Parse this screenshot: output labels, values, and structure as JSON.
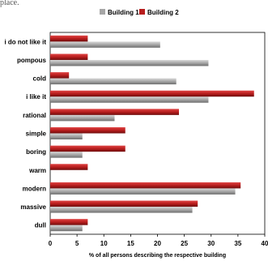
{
  "page": {
    "top_text": "place."
  },
  "chart_data": {
    "type": "bar",
    "orientation": "horizontal",
    "categories": [
      "i do not like it",
      "pompous",
      "cold",
      "i like it",
      "rational",
      "simple",
      "boring",
      "warm",
      "modern",
      "massive",
      "dull"
    ],
    "series": [
      {
        "name": "Building 1",
        "values": [
          20.5,
          29.5,
          23.5,
          29.5,
          12,
          6,
          6,
          0,
          34.5,
          26.5,
          6
        ]
      },
      {
        "name": "Building 2",
        "values": [
          7,
          7,
          3.5,
          38,
          24,
          14,
          14,
          7,
          35.5,
          27.5,
          7
        ]
      }
    ],
    "xlabel": "% of all persons describing the respective building",
    "ylabel": "",
    "xlim": [
      0,
      40
    ],
    "xticks": [
      "0",
      "5",
      "10",
      "15",
      "20",
      "25",
      "30",
      "35",
      "40"
    ],
    "grid": false,
    "legend": "top",
    "colors": {
      "Building 1": "#a6a6a6",
      "Building 2": "#b81d1d"
    }
  }
}
